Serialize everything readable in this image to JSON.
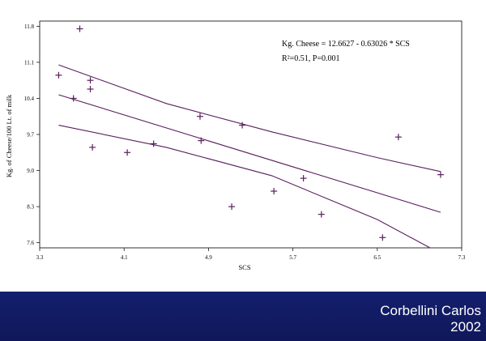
{
  "slide": {
    "author": "Corbellini Carlos",
    "year": "2002",
    "background_color": "#1c2f9a",
    "text_color": "#ffffff"
  },
  "chart_data": {
    "type": "scatter",
    "xlabel": "SCS",
    "ylabel": "Kg. of Cheese/100 Lt. of milk",
    "xlim": [
      3.3,
      7.3
    ],
    "ylim": [
      7.5,
      11.9
    ],
    "x_ticks": [
      "3.3",
      "4.1",
      "4.9",
      "5.7",
      "6.5",
      "7.3"
    ],
    "y_ticks": [
      "7.6",
      "8.3",
      "9.0",
      "9.7",
      "10.4",
      "11.1",
      "11.8"
    ],
    "annotations": [
      "Kg. Cheese = 12.6627 - 0.63026 * SCS",
      "R²=0.51, P=0.001"
    ],
    "marker_color": "#5a1f5e",
    "points": [
      {
        "x": 3.48,
        "y": 10.85
      },
      {
        "x": 3.62,
        "y": 10.4
      },
      {
        "x": 3.68,
        "y": 11.75
      },
      {
        "x": 3.78,
        "y": 10.75
      },
      {
        "x": 3.78,
        "y": 10.58
      },
      {
        "x": 3.8,
        "y": 9.45
      },
      {
        "x": 4.13,
        "y": 9.35
      },
      {
        "x": 4.38,
        "y": 9.52
      },
      {
        "x": 4.82,
        "y": 10.05
      },
      {
        "x": 4.83,
        "y": 9.58
      },
      {
        "x": 5.12,
        "y": 8.3
      },
      {
        "x": 5.22,
        "y": 9.88
      },
      {
        "x": 5.52,
        "y": 8.6
      },
      {
        "x": 5.8,
        "y": 8.85
      },
      {
        "x": 5.97,
        "y": 8.15
      },
      {
        "x": 6.55,
        "y": 7.7
      },
      {
        "x": 6.7,
        "y": 9.65
      },
      {
        "x": 7.1,
        "y": 8.92
      }
    ],
    "series": [
      {
        "style": "fit",
        "points": [
          [
            3.48,
            10.47
          ],
          [
            7.1,
            8.19
          ]
        ]
      },
      {
        "style": "upper",
        "points": [
          [
            3.48,
            11.05
          ],
          [
            4.5,
            10.3
          ],
          [
            5.5,
            9.75
          ],
          [
            6.5,
            9.25
          ],
          [
            7.1,
            8.98
          ]
        ]
      },
      {
        "style": "lower",
        "points": [
          [
            3.48,
            9.88
          ],
          [
            4.5,
            9.45
          ],
          [
            5.5,
            8.9
          ],
          [
            6.5,
            8.05
          ],
          [
            7.0,
            7.5
          ]
        ]
      }
    ]
  }
}
